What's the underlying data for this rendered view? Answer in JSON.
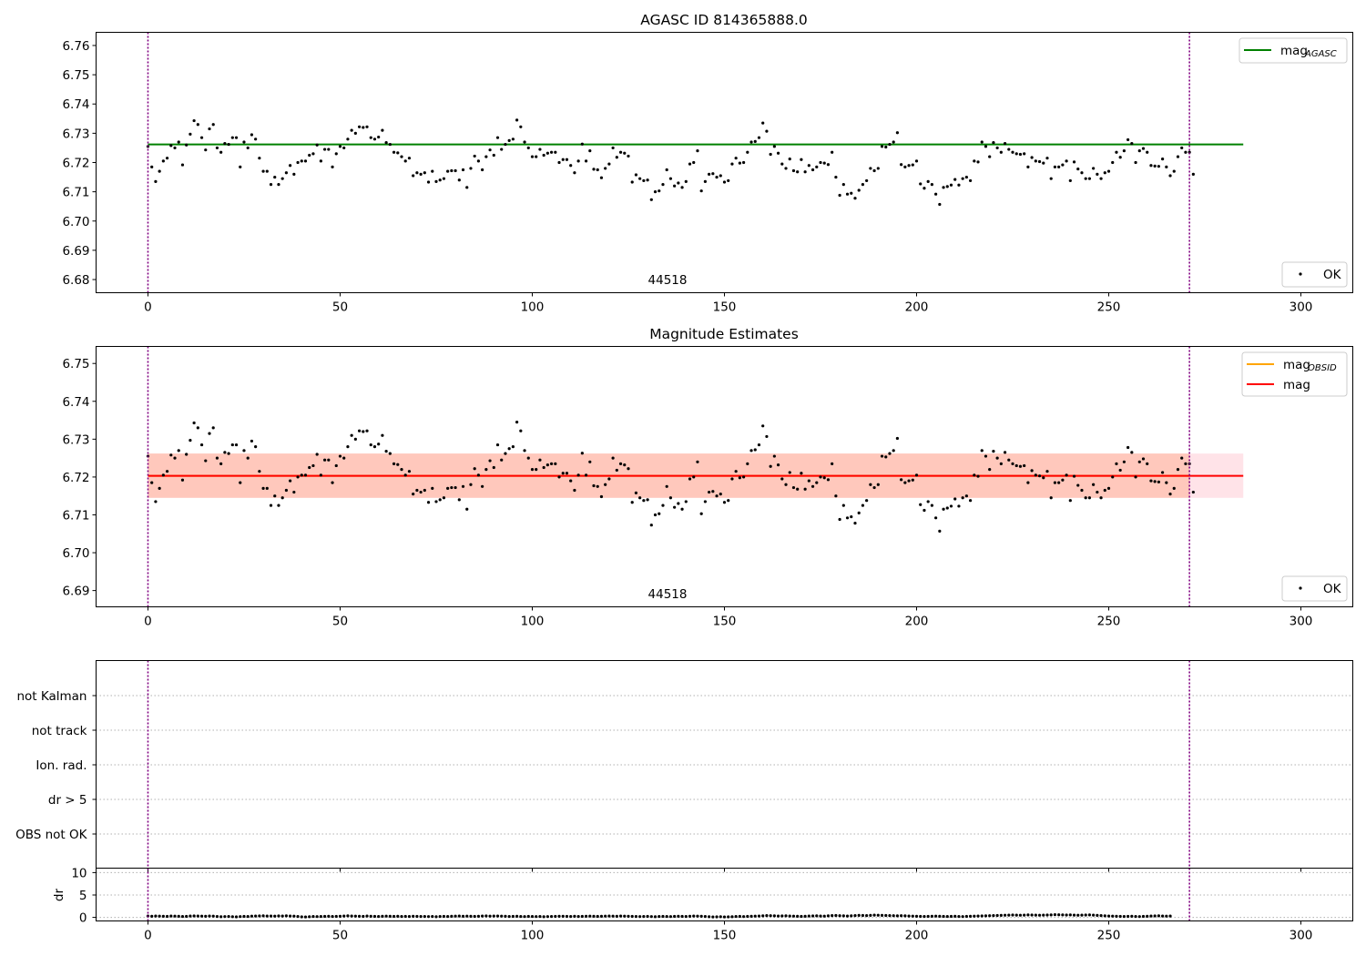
{
  "chart_data": [
    {
      "type": "scatter",
      "title": "AGASC ID 814365888.0",
      "xlim": [
        -13.5,
        313.5
      ],
      "ylim": [
        6.6755,
        6.7645
      ],
      "xticks": [
        0,
        50,
        100,
        150,
        200,
        250,
        300
      ],
      "yticks": [
        6.68,
        6.69,
        6.7,
        6.71,
        6.72,
        6.73,
        6.74,
        6.75,
        6.76
      ],
      "series": [
        {
          "name": "OK",
          "color": "#000000",
          "marker": "dot",
          "x_start": 0,
          "x_step": 1,
          "values_ref": "mag_points"
        }
      ],
      "lines": [
        {
          "name": "mag",
          "label_sub": "AGASC",
          "color": "#008000",
          "y": 6.7262,
          "x_range": [
            0,
            285
          ]
        }
      ],
      "vlines": [
        {
          "x": 0,
          "color": "#800080"
        },
        {
          "x": 271,
          "color": "#800080"
        }
      ],
      "annotations": [
        {
          "text": "44518",
          "x": 135.5
        }
      ],
      "legend": [
        "top-right",
        "bottom-right"
      ]
    },
    {
      "type": "scatter",
      "title": "Magnitude Estimates",
      "xlim": [
        -13.5,
        313.5
      ],
      "ylim": [
        6.6857,
        6.7545
      ],
      "xticks": [
        0,
        50,
        100,
        150,
        200,
        250,
        300
      ],
      "yticks": [
        6.69,
        6.7,
        6.71,
        6.72,
        6.73,
        6.74,
        6.75
      ],
      "series": [
        {
          "name": "OK",
          "color": "#000000",
          "marker": "dot",
          "x_start": 0,
          "x_step": 1,
          "values_ref": "mag_points"
        }
      ],
      "lines": [
        {
          "name": "mag",
          "label_sub": "OBSID",
          "color": "#ffa500",
          "y": 6.7203,
          "x_range": [
            0,
            271
          ]
        },
        {
          "name": "mag",
          "label_sub": "",
          "color": "#ff0000",
          "y": 6.7203,
          "x_range": [
            0,
            285
          ]
        }
      ],
      "bands": [
        {
          "color": "#ffc0cb",
          "y_range": [
            6.7145,
            6.7262
          ],
          "x_range": [
            0,
            285
          ]
        },
        {
          "color": "#ffa07a",
          "y_range": [
            6.7145,
            6.7262
          ],
          "x_range": [
            0,
            271
          ]
        }
      ],
      "vlines": [
        {
          "x": 0,
          "color": "#800080"
        },
        {
          "x": 271,
          "color": "#800080"
        }
      ],
      "annotations": [
        {
          "text": "44518",
          "x": 135.5
        }
      ],
      "legend": [
        "top-right",
        "bottom-right"
      ]
    },
    {
      "type": "scatter",
      "title": "",
      "xlim": [
        -13.5,
        313.5
      ],
      "categories": [
        "OBS not OK",
        "dr > 5",
        "Ion. rad.",
        "not track",
        "not Kalman"
      ],
      "grid": "horizontal-dotted",
      "vlines": [
        {
          "x": 0,
          "color": "#800080"
        },
        {
          "x": 271,
          "color": "#800080"
        }
      ]
    },
    {
      "type": "scatter",
      "title": "",
      "ylabel": "dr",
      "xlim": [
        -13.5,
        313.5
      ],
      "ylim": [
        -0.8,
        11
      ],
      "xticks": [
        0,
        50,
        100,
        150,
        200,
        250,
        300
      ],
      "yticks": [
        0,
        5,
        10
      ],
      "series": [
        {
          "name": "dr",
          "color": "#000000",
          "marker": "dot",
          "x_start": 0,
          "x_step": 1,
          "values_ref": "dr_points"
        }
      ],
      "vlines": [
        {
          "x": 0,
          "color": "#800080"
        },
        {
          "x": 271,
          "color": "#800080"
        }
      ]
    }
  ],
  "mag_points": [
    6.7255,
    6.7185,
    6.7135,
    6.717,
    6.7205,
    6.7215,
    6.7258,
    6.725,
    6.727,
    6.7192,
    6.726,
    6.7297,
    6.7343,
    6.733,
    6.7285,
    6.7243,
    6.7315,
    6.733,
    6.725,
    6.7235,
    6.7265,
    6.7262,
    6.7285,
    6.7285,
    6.7185,
    6.727,
    6.725,
    6.7295,
    6.728,
    6.7215,
    6.717,
    6.717,
    6.7125,
    6.715,
    6.7125,
    6.7145,
    6.7165,
    6.719,
    6.716,
    6.72,
    6.7205,
    6.7205,
    6.7225,
    6.723,
    6.726,
    6.7205,
    6.7245,
    6.7245,
    6.7185,
    6.723,
    6.7255,
    6.725,
    6.728,
    6.731,
    6.73,
    6.7322,
    6.732,
    6.7322,
    6.7285,
    6.728,
    6.7287,
    6.731,
    6.7268,
    6.7262,
    6.7235,
    6.7233,
    6.722,
    6.7205,
    6.7215,
    6.7155,
    6.7165,
    6.716,
    6.7165,
    6.7133,
    6.717,
    6.7135,
    6.714,
    6.7145,
    6.717,
    6.7172,
    6.7172,
    6.714,
    6.7175,
    6.7115,
    6.718,
    6.7222,
    6.7205,
    6.7175,
    6.722,
    6.7243,
    6.7225,
    6.7285,
    6.7245,
    6.7262,
    6.7275,
    6.728,
    6.7345,
    6.7322,
    6.727,
    6.725,
    6.722,
    6.722,
    6.7245,
    6.7225,
    6.7232,
    6.7235,
    6.7235,
    6.72,
    6.721,
    6.721,
    6.719,
    6.7165,
    6.7205,
    6.7263,
    6.7205,
    6.724,
    6.7177,
    6.7175,
    6.7148,
    6.718,
    6.7195,
    6.725,
    6.7218,
    6.7235,
    6.7232,
    6.7222,
    6.7133,
    6.7158,
    6.7145,
    6.7138,
    6.714,
    6.7073,
    6.71,
    6.7103,
    6.7125,
    6.7175,
    6.7145,
    6.712,
    6.713,
    6.7115,
    6.7135,
    6.7195,
    6.72,
    6.724,
    6.7103,
    6.7135,
    6.716,
    6.7162,
    6.715,
    6.7155,
    6.7133,
    6.7138,
    6.7195,
    6.7215,
    6.7198,
    6.72,
    6.7235,
    6.727,
    6.7272,
    6.7285,
    6.7335,
    6.7307,
    6.7228,
    6.7255,
    6.7232,
    6.7195,
    6.718,
    6.7212,
    6.7172,
    6.7168,
    6.721,
    6.7168,
    6.719,
    6.7175,
    6.7185,
    6.72,
    6.7198,
    6.7193,
    6.7235,
    6.715,
    6.7088,
    6.7125,
    6.7092,
    6.7095,
    6.7078,
    6.7105,
    6.7125,
    6.7138,
    6.718,
    6.7172,
    6.718,
    6.7255,
    6.7253,
    6.7262,
    6.727,
    6.7302,
    6.7193,
    6.7185,
    6.719,
    6.7192,
    6.7205,
    6.7127,
    6.7112,
    6.7135,
    6.7125,
    6.7092,
    6.7057,
    6.7115,
    6.7118,
    6.7123,
    6.7142,
    6.7123,
    6.7145,
    6.715,
    6.7138,
    6.7205,
    6.7202,
    6.727,
    6.7255,
    6.722,
    6.7268,
    6.725,
    6.7235,
    6.7265,
    6.7245,
    6.7235,
    6.723,
    6.7228,
    6.723,
    6.7185,
    6.7217,
    6.7205,
    6.7203,
    6.7198,
    6.7215,
    6.7145,
    6.7185,
    6.7185,
    6.7192,
    6.7205,
    6.7138,
    6.7202,
    6.7178,
    6.7165,
    6.7145,
    6.7145,
    6.718,
    6.716,
    6.7145,
    6.7165,
    6.717,
    6.72,
    6.7235,
    6.7218,
    6.724,
    6.7278,
    6.7265,
    6.72,
    6.724,
    6.7248,
    6.7235,
    6.719,
    6.7188,
    6.7187,
    6.7212,
    6.7185,
    6.7155,
    6.717,
    6.722,
    6.725,
    6.7235,
    6.7235,
    6.716
  ],
  "dr_points": [
    0.3,
    0.25,
    0.3,
    0.28,
    0.25,
    0.22,
    0.3,
    0.28,
    0.25,
    0.2,
    0.22,
    0.3,
    0.32,
    0.3,
    0.28,
    0.25,
    0.3,
    0.28,
    0.2,
    0.15,
    0.18,
    0.2,
    0.15,
    0.12,
    0.18,
    0.22,
    0.2,
    0.28,
    0.3,
    0.32,
    0.35,
    0.3,
    0.3,
    0.28,
    0.32,
    0.3,
    0.35,
    0.3,
    0.28,
    0.2,
    0.12,
    0.1,
    0.15,
    0.2,
    0.18,
    0.2,
    0.22,
    0.25,
    0.2,
    0.22,
    0.25,
    0.3,
    0.35,
    0.3,
    0.28,
    0.25,
    0.22,
    0.3,
    0.25,
    0.22,
    0.2,
    0.25,
    0.28,
    0.25,
    0.22,
    0.25,
    0.2,
    0.22,
    0.2,
    0.25,
    0.22,
    0.2,
    0.2,
    0.18,
    0.2,
    0.15,
    0.2,
    0.22,
    0.2,
    0.25,
    0.28,
    0.3,
    0.25,
    0.28,
    0.25,
    0.22,
    0.25,
    0.3,
    0.32,
    0.28,
    0.3,
    0.3,
    0.28,
    0.25,
    0.2,
    0.22,
    0.25,
    0.2,
    0.18,
    0.22,
    0.2,
    0.18,
    0.2,
    0.15,
    0.18,
    0.2,
    0.22,
    0.25,
    0.25,
    0.22,
    0.2,
    0.25,
    0.2,
    0.22,
    0.25,
    0.28,
    0.25,
    0.22,
    0.25,
    0.28,
    0.3,
    0.28,
    0.25,
    0.3,
    0.28,
    0.25,
    0.22,
    0.2,
    0.18,
    0.2,
    0.22,
    0.18,
    0.15,
    0.2,
    0.22,
    0.2,
    0.18,
    0.22,
    0.25,
    0.22,
    0.2,
    0.25,
    0.3,
    0.28,
    0.25,
    0.2,
    0.15,
    0.1,
    0.12,
    0.15,
    0.1,
    0.12,
    0.15,
    0.2,
    0.22,
    0.18,
    0.22,
    0.25,
    0.28,
    0.3,
    0.35,
    0.4,
    0.38,
    0.35,
    0.3,
    0.32,
    0.35,
    0.3,
    0.28,
    0.25,
    0.22,
    0.25,
    0.3,
    0.32,
    0.35,
    0.3,
    0.28,
    0.35,
    0.4,
    0.42,
    0.38,
    0.35,
    0.3,
    0.35,
    0.4,
    0.45,
    0.42,
    0.4,
    0.45,
    0.5,
    0.48,
    0.45,
    0.42,
    0.4,
    0.38,
    0.35,
    0.38,
    0.35,
    0.3,
    0.28,
    0.25,
    0.22,
    0.2,
    0.22,
    0.25,
    0.28,
    0.25,
    0.22,
    0.2,
    0.22,
    0.25,
    0.2,
    0.18,
    0.22,
    0.25,
    0.28,
    0.3,
    0.32,
    0.35,
    0.38,
    0.4,
    0.42,
    0.45,
    0.48,
    0.5,
    0.52,
    0.5,
    0.48,
    0.5,
    0.55,
    0.52,
    0.5,
    0.48,
    0.5,
    0.52,
    0.55,
    0.6,
    0.58,
    0.55,
    0.52,
    0.55,
    0.5,
    0.48,
    0.5,
    0.52,
    0.55,
    0.5,
    0.45,
    0.4,
    0.35,
    0.3,
    0.28,
    0.25,
    0.22,
    0.2,
    0.22,
    0.25,
    0.2,
    0.18,
    0.22,
    0.25,
    0.3,
    0.32,
    0.35,
    0.3,
    0.28,
    0.3
  ]
}
